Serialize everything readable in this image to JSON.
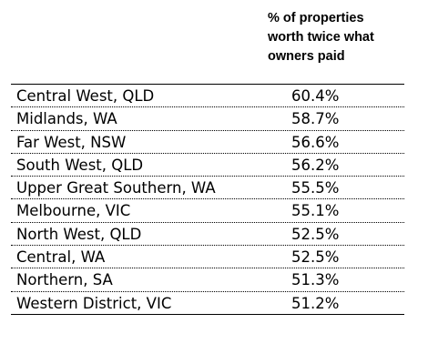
{
  "header": {
    "line1": "% of properties",
    "line2": "worth twice what",
    "line3": "owners paid"
  },
  "rows": [
    {
      "region": "Central West, QLD",
      "value": "60.4%"
    },
    {
      "region": "Midlands, WA",
      "value": "58.7%"
    },
    {
      "region": "Far West, NSW",
      "value": "56.6%"
    },
    {
      "region": "South West, QLD",
      "value": "56.2%"
    },
    {
      "region": "Upper Great Southern, WA",
      "value": "55.5%"
    },
    {
      "region": "Melbourne, VIC",
      "value": "55.1%"
    },
    {
      "region": "North West, QLD",
      "value": "52.5%"
    },
    {
      "region": "Central, WA",
      "value": "52.5%"
    },
    {
      "region": "Northern, SA",
      "value": "51.3%"
    },
    {
      "region": "Western District, VIC",
      "value": "51.2%"
    }
  ]
}
